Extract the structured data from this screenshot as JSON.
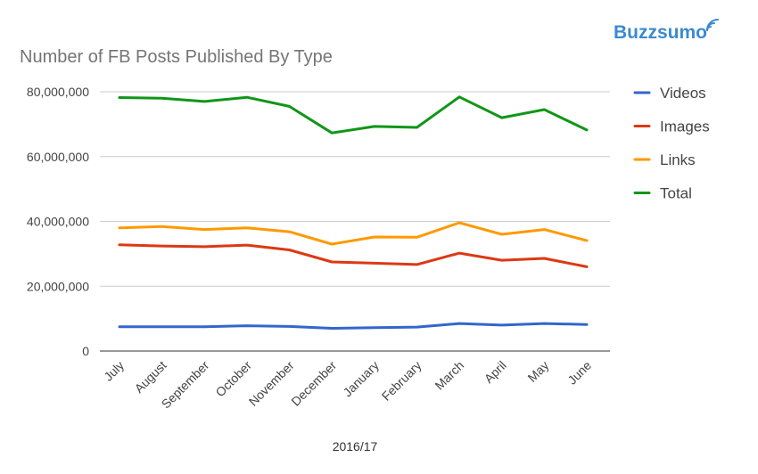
{
  "brand": {
    "name": "Buzzsumo",
    "color": "#3b8ad0"
  },
  "chart_data": {
    "type": "line",
    "title": "Number of FB Posts Published By Type",
    "xlabel": "2016/17",
    "ylabel": "",
    "ylim": [
      0,
      80000000
    ],
    "yticks": [
      0,
      20000000,
      40000000,
      60000000,
      80000000
    ],
    "ytick_labels": [
      "0",
      "20,000,000",
      "40,000,000",
      "60,000,000",
      "80,000,000"
    ],
    "grid": true,
    "legend_position": "right",
    "categories": [
      "July",
      "August",
      "September",
      "October",
      "November",
      "December",
      "January",
      "February",
      "March",
      "April",
      "May",
      "June"
    ],
    "series": [
      {
        "name": "Videos",
        "color": "#3366cc",
        "values": [
          7500000,
          7500000,
          7500000,
          7800000,
          7600000,
          7000000,
          7200000,
          7400000,
          8500000,
          8000000,
          8500000,
          8200000
        ]
      },
      {
        "name": "Images",
        "color": "#dc3912",
        "values": [
          32800000,
          32400000,
          32200000,
          32700000,
          31200000,
          27500000,
          27100000,
          26700000,
          30200000,
          28000000,
          28600000,
          26000000
        ]
      },
      {
        "name": "Links",
        "color": "#ff9900",
        "values": [
          38000000,
          38400000,
          37500000,
          38000000,
          36800000,
          33000000,
          35200000,
          35100000,
          39600000,
          36000000,
          37500000,
          34100000
        ]
      },
      {
        "name": "Total",
        "color": "#109618",
        "values": [
          78200000,
          78000000,
          77000000,
          78300000,
          75500000,
          67300000,
          69300000,
          69000000,
          78400000,
          72000000,
          74500000,
          68200000
        ]
      }
    ]
  }
}
